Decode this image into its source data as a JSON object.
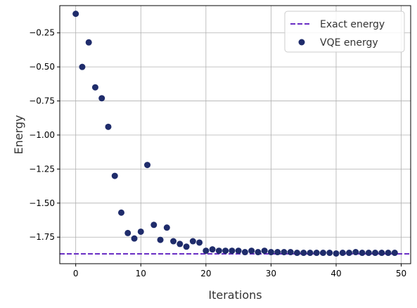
{
  "chart_data": {
    "type": "scatter",
    "xlabel": "Iterations",
    "ylabel": "Energy",
    "xlim": [
      -2.45,
      51.45
    ],
    "ylim": [
      -1.945,
      -0.05
    ],
    "xticks": [
      0,
      10,
      20,
      30,
      40,
      50
    ],
    "yticks": [
      -0.25,
      -0.5,
      -0.75,
      -1.0,
      -1.25,
      -1.5,
      -1.75
    ],
    "xtick_labels": [
      "0",
      "10",
      "20",
      "30",
      "40",
      "50"
    ],
    "ytick_labels": [
      "−0.25",
      "−0.50",
      "−0.75",
      "−1.00",
      "−1.25",
      "−1.50",
      "−1.75"
    ],
    "grid": true,
    "legend_position": "upper right",
    "reference_line": {
      "name": "Exact energy",
      "y": -1.873,
      "style": "dashed",
      "color": "#6a2ec4"
    },
    "series": [
      {
        "name": "VQE energy",
        "color": "#1f2c6b",
        "x": [
          0,
          1,
          2,
          3,
          4,
          5,
          6,
          7,
          8,
          9,
          10,
          11,
          12,
          13,
          14,
          15,
          16,
          17,
          18,
          19,
          20,
          21,
          22,
          23,
          24,
          25,
          26,
          27,
          28,
          29,
          30,
          31,
          32,
          33,
          34,
          35,
          36,
          37,
          38,
          39,
          40,
          41,
          42,
          43,
          44,
          45,
          46,
          47,
          48,
          49
        ],
        "y": [
          -0.11,
          -0.5,
          -0.32,
          -0.65,
          -0.73,
          -0.94,
          -1.3,
          -1.57,
          -1.72,
          -1.76,
          -1.71,
          -1.22,
          -1.66,
          -1.77,
          -1.68,
          -1.78,
          -1.8,
          -1.82,
          -1.78,
          -1.79,
          -1.85,
          -1.84,
          -1.85,
          -1.85,
          -1.85,
          -1.85,
          -1.86,
          -1.85,
          -1.86,
          -1.85,
          -1.86,
          -1.86,
          -1.86,
          -1.86,
          -1.865,
          -1.865,
          -1.865,
          -1.865,
          -1.865,
          -1.865,
          -1.87,
          -1.865,
          -1.865,
          -1.86,
          -1.865,
          -1.865,
          -1.865,
          -1.865,
          -1.865,
          -1.865
        ]
      }
    ]
  }
}
